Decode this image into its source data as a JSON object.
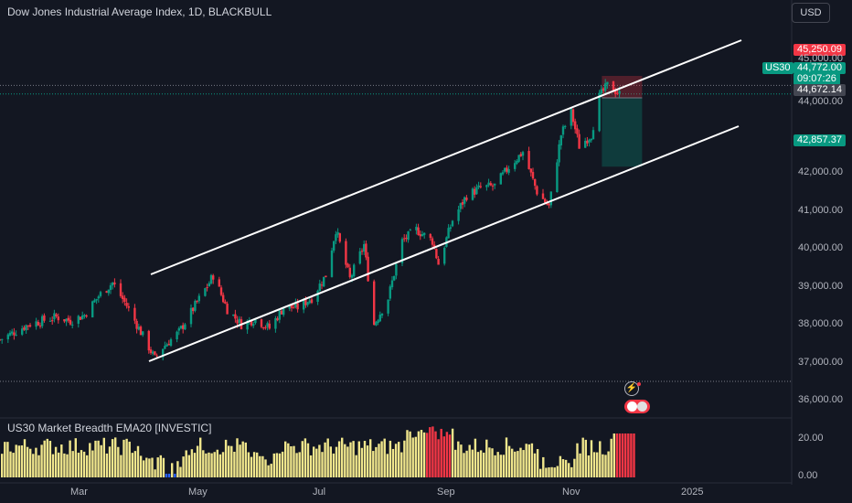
{
  "header": {
    "title": "Dow Jones Industrial Average Index, 1D, BLACKBULL",
    "currency_button": "USD"
  },
  "indicator": {
    "title": "US30 Market Breadth EMA20 [INVESTIC]",
    "y_ticks": [
      "20.00",
      "0.00"
    ]
  },
  "price_axis": {
    "ticks": [
      "45,000.00",
      "44,000.00",
      "42,000.00",
      "41,000.00",
      "40,000.00",
      "39,000.00",
      "38,000.00",
      "37,000.00",
      "36,000.00"
    ]
  },
  "time_axis": {
    "labels": [
      "Mar",
      "May",
      "Jul",
      "Sep",
      "Nov",
      "2025"
    ]
  },
  "price_tags": {
    "symbol": "US30",
    "stop_loss": "45,250.09",
    "last_price": "44,772.00",
    "countdown": "09:07:26",
    "entry": "44,672.14",
    "take_profit": "42,857.37"
  },
  "colors": {
    "background": "#131722",
    "up": "#089981",
    "down": "#f23645",
    "breadth_bar": "#f0e68c",
    "breadth_red": "#f23645",
    "breadth_blue": "#2962ff",
    "channel_line": "#ffffff"
  },
  "icons": [
    "lightning-icon",
    "us-flag-icon"
  ],
  "chart_data": {
    "type": "candlestick",
    "title": "Dow Jones Industrial Average Index, 1D, BLACKBULL",
    "y_range": [
      35700,
      45700
    ],
    "x_range": [
      "2024-02-01",
      "2025-02-10"
    ],
    "price_series": [
      [
        "2024-02-01",
        38300
      ],
      [
        "2024-02-15",
        38700
      ],
      [
        "2024-02-29",
        38900
      ],
      [
        "2024-03-07",
        38800
      ],
      [
        "2024-03-14",
        38950
      ],
      [
        "2024-03-21",
        39450
      ],
      [
        "2024-03-28",
        39800
      ],
      [
        "2024-04-04",
        39200
      ],
      [
        "2024-04-11",
        38500
      ],
      [
        "2024-04-18",
        37800
      ],
      [
        "2024-04-22",
        38100
      ],
      [
        "2024-04-30",
        38500
      ],
      [
        "2024-05-08",
        39200
      ],
      [
        "2024-05-15",
        39800
      ],
      [
        "2024-05-17",
        40000
      ],
      [
        "2024-05-24",
        39100
      ],
      [
        "2024-05-31",
        38700
      ],
      [
        "2024-06-07",
        38850
      ],
      [
        "2024-06-14",
        38600
      ],
      [
        "2024-06-21",
        39150
      ],
      [
        "2024-06-28",
        39150
      ],
      [
        "2024-07-05",
        39400
      ],
      [
        "2024-07-12",
        40000
      ],
      [
        "2024-07-17",
        41200
      ],
      [
        "2024-07-24",
        39900
      ],
      [
        "2024-07-31",
        40800
      ],
      [
        "2024-08-05",
        38700
      ],
      [
        "2024-08-12",
        39400
      ],
      [
        "2024-08-19",
        40900
      ],
      [
        "2024-08-26",
        41200
      ],
      [
        "2024-09-03",
        40900
      ],
      [
        "2024-09-06",
        40300
      ],
      [
        "2024-09-13",
        41450
      ],
      [
        "2024-09-20",
        42100
      ],
      [
        "2024-09-27",
        42300
      ],
      [
        "2024-10-04",
        42350
      ],
      [
        "2024-10-11",
        42850
      ],
      [
        "2024-10-18",
        43250
      ],
      [
        "2024-10-25",
        42200
      ],
      [
        "2024-10-31",
        41800
      ],
      [
        "2024-11-06",
        43700
      ],
      [
        "2024-11-11",
        44300
      ],
      [
        "2024-11-15",
        43400
      ],
      [
        "2024-11-21",
        43700
      ],
      [
        "2024-11-25",
        44700
      ],
      [
        "2024-11-29",
        45000
      ],
      [
        "2024-12-02",
        44900
      ],
      [
        "2024-12-05",
        44772
      ]
    ],
    "channel_upper": [
      [
        "2024-04-01",
        39300
      ],
      [
        "2024-12-31",
        45750
      ]
    ],
    "channel_lower": [
      [
        "2024-04-01",
        37000
      ],
      [
        "2024-12-31",
        43150
      ]
    ],
    "position": {
      "type": "short",
      "entry": 44672.14,
      "stop": 45250.09,
      "target": 42857.37
    },
    "horizontal_lines": [
      45000,
      37200
    ],
    "breadth_series_note": "US30 Market Breadth EMA20, values 0–30",
    "breadth_range": [
      0,
      30
    ]
  }
}
